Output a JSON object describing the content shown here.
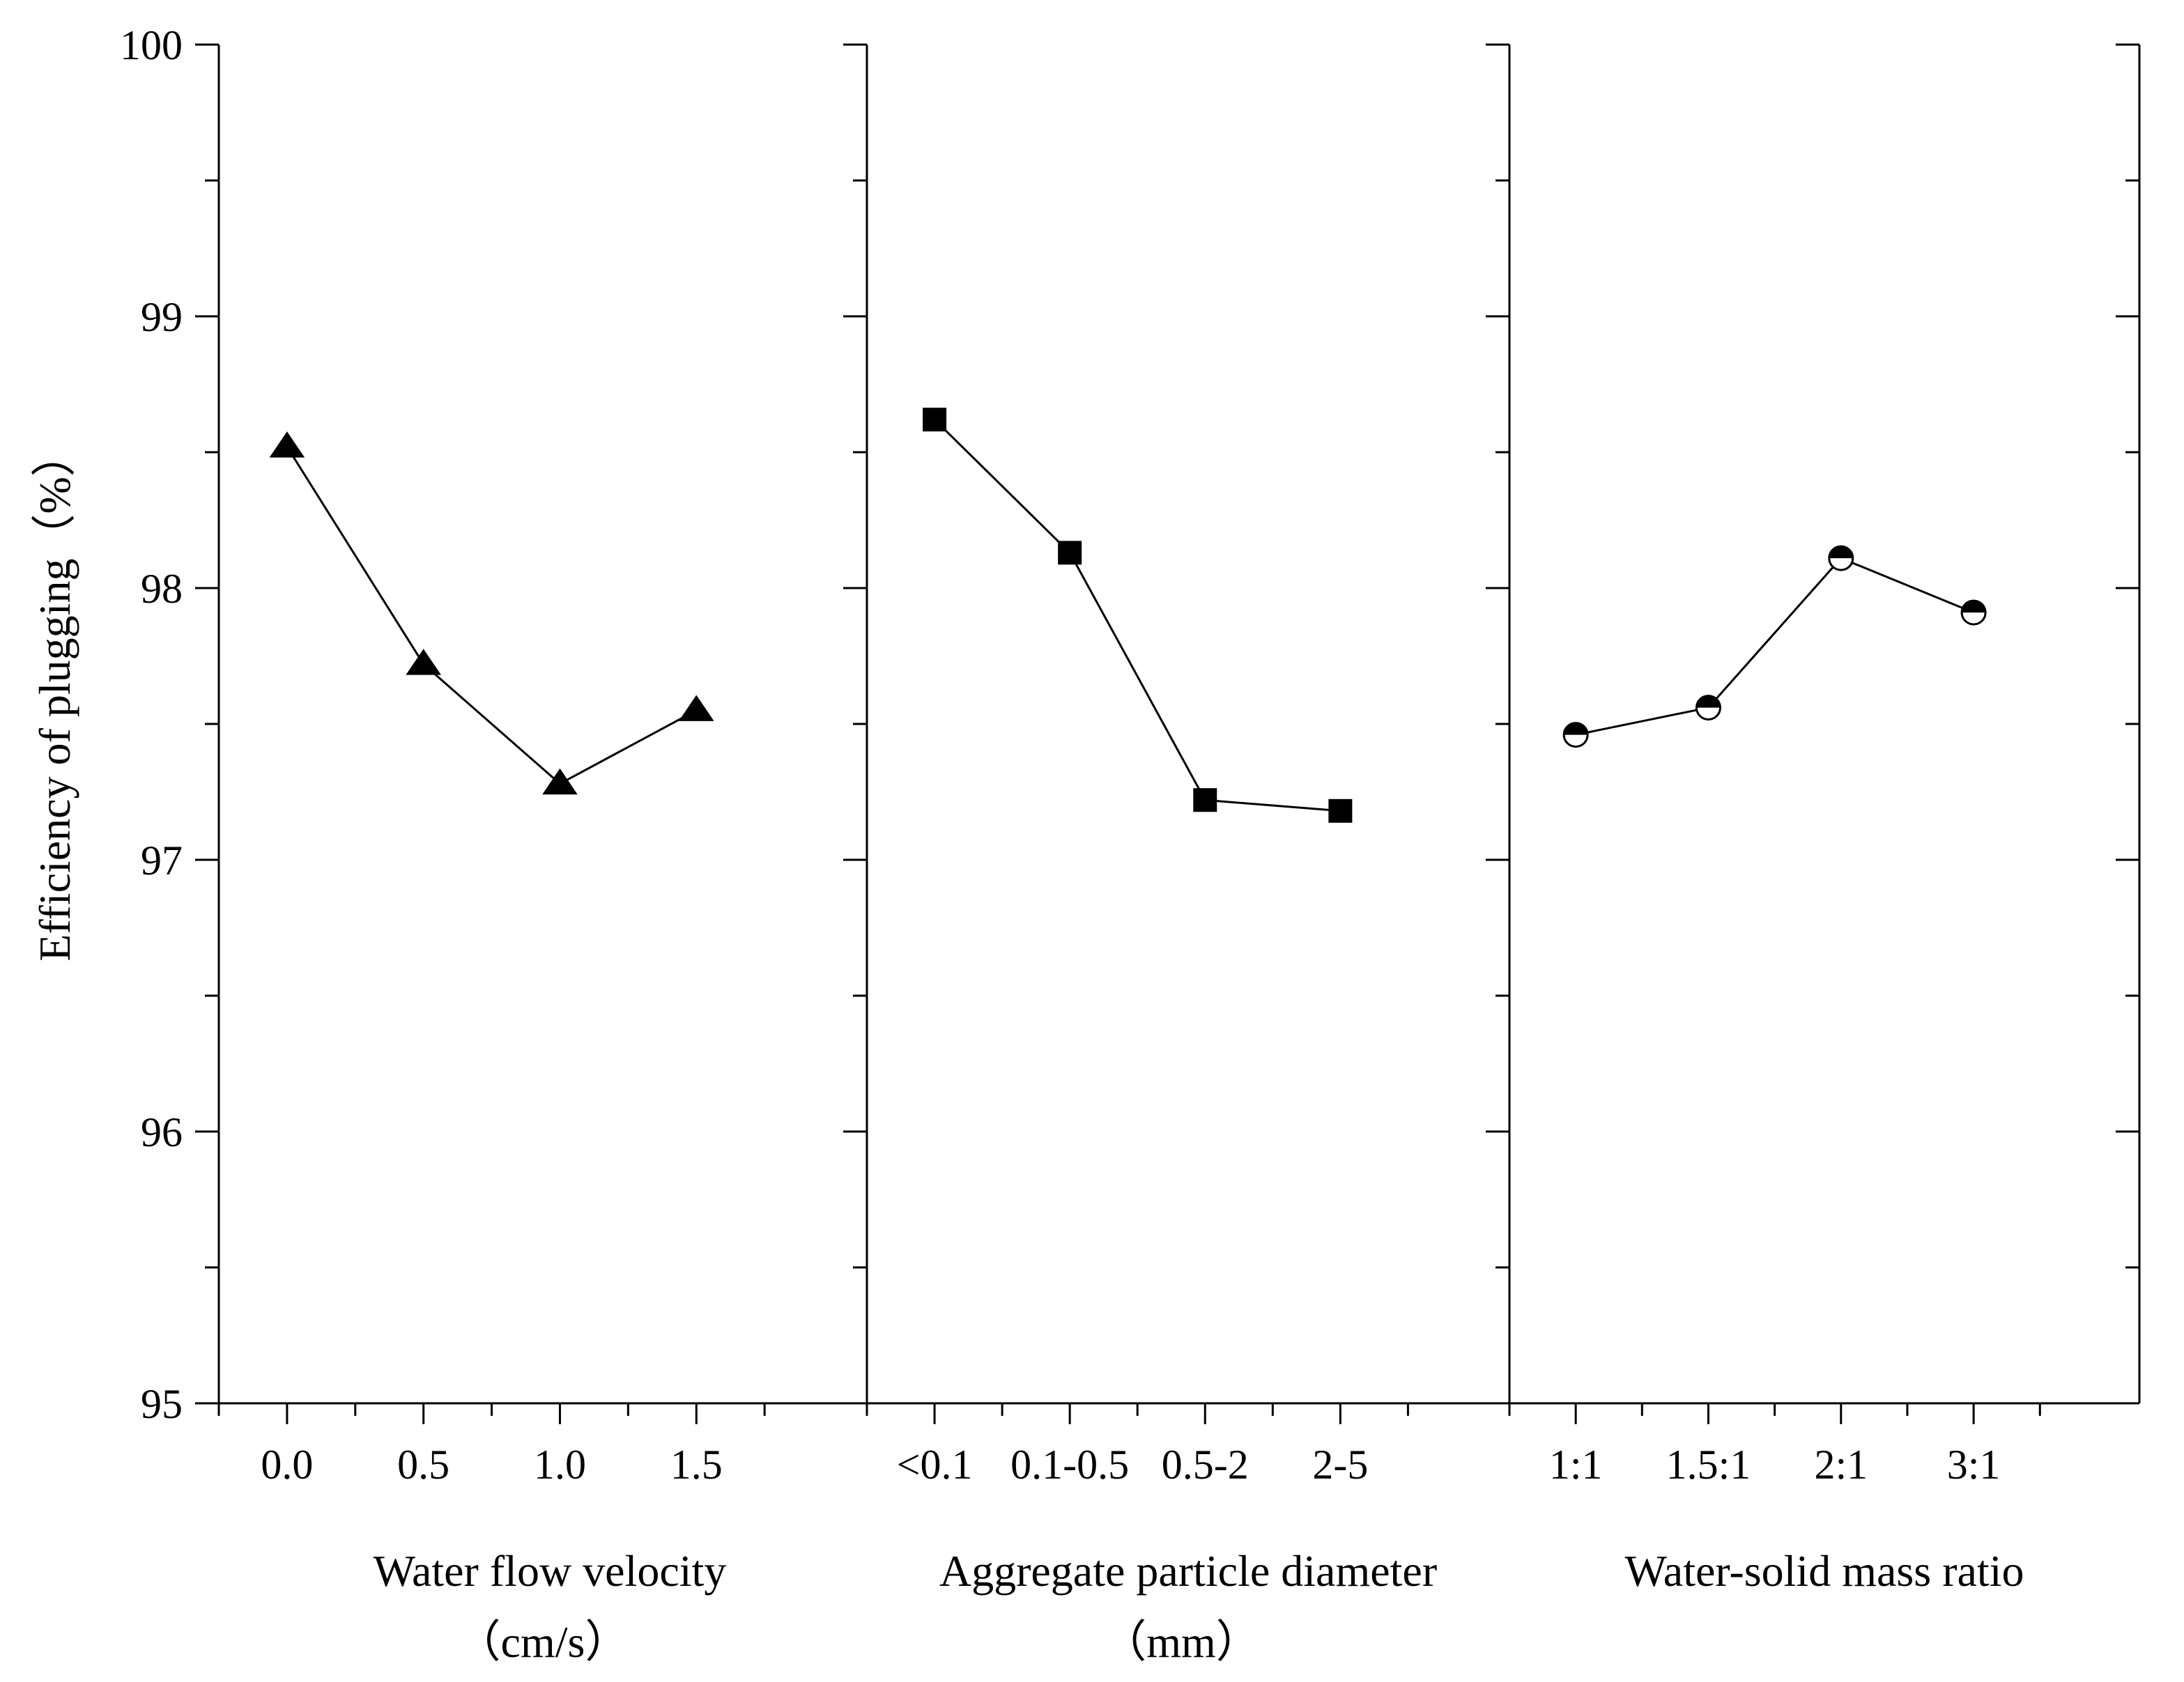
{
  "chart_data": {
    "type": "line",
    "ylabel": "Efficiency of plugging（%）",
    "ylim": [
      95,
      100
    ],
    "yticks": [
      "95",
      "96",
      "97",
      "98",
      "99",
      "100"
    ],
    "panels": [
      {
        "xlabel_line1": "Water flow velocity",
        "xlabel_line2": "（cm/s）",
        "categories": [
          "0.0",
          "0.5",
          "1.0",
          "1.5"
        ],
        "values": [
          98.52,
          97.72,
          97.28,
          97.55
        ],
        "marker": "triangle"
      },
      {
        "xlabel_line1": "Aggregate particle diameter",
        "xlabel_line2": "（mm）",
        "categories": [
          "<0.1",
          "0.1-0.5",
          "0.5-2",
          "2-5"
        ],
        "values": [
          98.62,
          98.13,
          97.22,
          97.18
        ],
        "marker": "square"
      },
      {
        "xlabel_line1": "Water-solid mass ratio",
        "xlabel_line2": "",
        "categories": [
          "1:1",
          "1.5:1",
          "2:1",
          "3:1"
        ],
        "values": [
          97.46,
          97.56,
          98.11,
          97.91
        ],
        "marker": "half-circle"
      }
    ]
  }
}
